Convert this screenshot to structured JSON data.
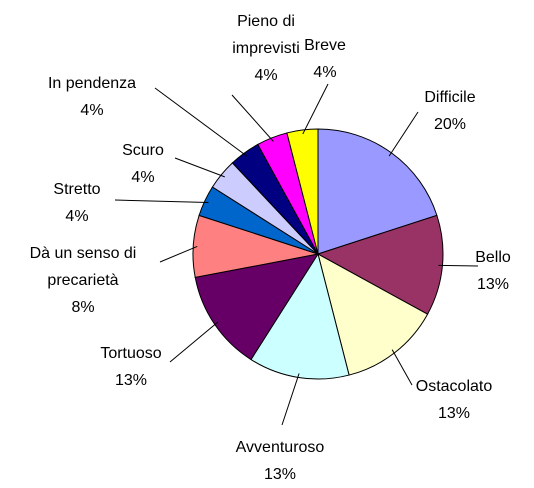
{
  "chart_data": {
    "type": "pie",
    "categories": [
      "Difficile",
      "Bello",
      "Ostacolato",
      "Avventuroso",
      "Tortuoso",
      "Dà un senso di precarietà",
      "Stretto",
      "Scuro",
      "In pendenza",
      "Pieno di imprevisti",
      "Breve"
    ],
    "values": [
      20,
      13,
      13,
      13,
      13,
      8,
      4,
      4,
      4,
      4,
      4
    ],
    "value_labels": [
      "20%",
      "13%",
      "13%",
      "13%",
      "13%",
      "8%",
      "4%",
      "4%",
      "4%",
      "4%",
      "4%"
    ],
    "colors": [
      "#9999ff",
      "#993366",
      "#ffffcc",
      "#ccffff",
      "#660066",
      "#ff8080",
      "#0066cc",
      "#ccccff",
      "#000080",
      "#ff00ff",
      "#ffff00"
    ]
  }
}
